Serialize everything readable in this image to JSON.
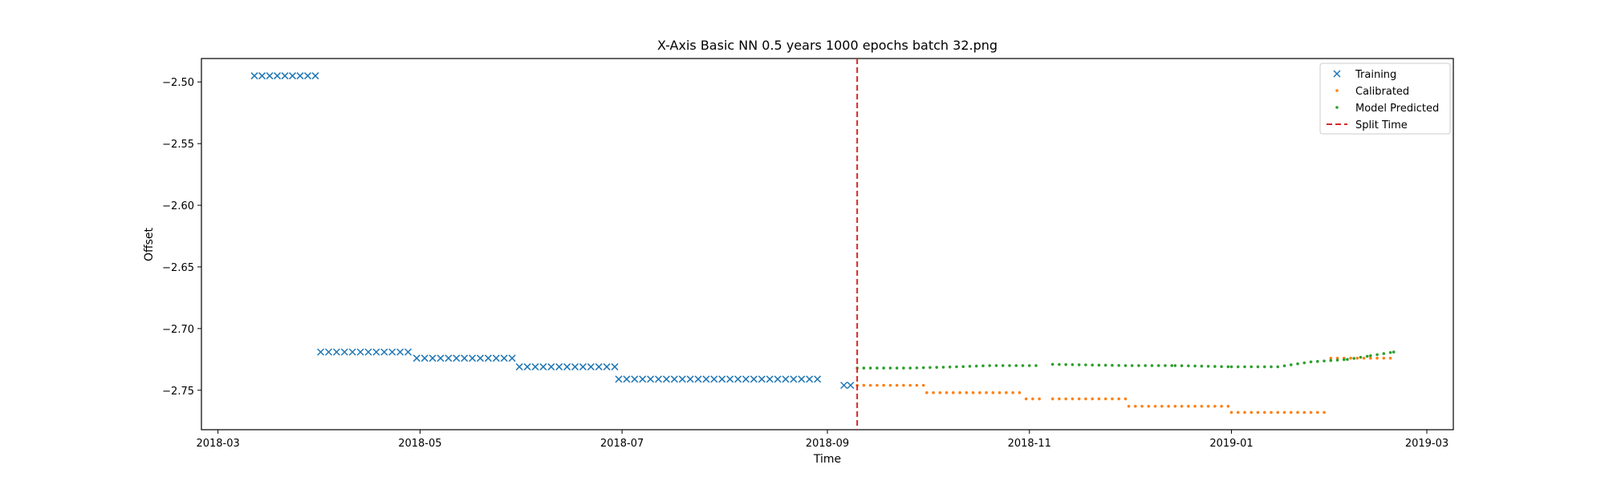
{
  "chart_data": {
    "type": "scatter",
    "title": "X-Axis Basic NN 0.5 years 1000 epochs batch 32.png",
    "xlabel": "Time",
    "ylabel": "Offset",
    "xlim": [
      "2018-02-24",
      "2019-03-09"
    ],
    "ylim": [
      -2.782,
      -2.481
    ],
    "x_ticks": [
      {
        "date": "2018-03-01",
        "label": "2018-03"
      },
      {
        "date": "2018-05-01",
        "label": "2018-05"
      },
      {
        "date": "2018-07-01",
        "label": "2018-07"
      },
      {
        "date": "2018-09-01",
        "label": "2018-09"
      },
      {
        "date": "2018-11-01",
        "label": "2018-11"
      },
      {
        "date": "2019-01-01",
        "label": "2019-01"
      },
      {
        "date": "2019-03-01",
        "label": "2019-03"
      }
    ],
    "y_ticks": [
      {
        "value": -2.5,
        "label": "−2.50"
      },
      {
        "value": -2.55,
        "label": "−2.55"
      },
      {
        "value": -2.6,
        "label": "−2.60"
      },
      {
        "value": -2.65,
        "label": "−2.65"
      },
      {
        "value": -2.7,
        "label": "−2.70"
      },
      {
        "value": -2.75,
        "label": "−2.75"
      }
    ],
    "grid": false,
    "legend_position": "top-right",
    "series": [
      {
        "name": "Training",
        "marker": "x",
        "color": "#1f77b4",
        "segments": [
          {
            "start": "2018-03-12",
            "end": "2018-03-31",
            "step_days": 2.3,
            "y": -2.495
          },
          {
            "start": "2018-04-01",
            "end": "2018-04-29",
            "step_days": 2.4,
            "y": -2.719
          },
          {
            "start": "2018-04-30",
            "end": "2018-05-30",
            "step_days": 2.4,
            "y": -2.724
          },
          {
            "start": "2018-05-31",
            "end": "2018-06-29",
            "step_days": 2.4,
            "y": -2.731
          },
          {
            "start": "2018-06-30",
            "end": "2018-08-30",
            "step_days": 2.4,
            "y": -2.741
          },
          {
            "start": "2018-09-06",
            "end": "2018-09-08",
            "step_days": 2.0,
            "y": -2.746
          }
        ]
      },
      {
        "name": "Calibrated",
        "marker": "dot",
        "color": "#ff7f0e",
        "segments": [
          {
            "start": "2018-09-10",
            "end": "2018-09-30",
            "step_days": 2.0,
            "y": -2.746
          },
          {
            "start": "2018-10-01",
            "end": "2018-10-30",
            "step_days": 2.0,
            "y": -2.752
          },
          {
            "start": "2018-10-31",
            "end": "2018-11-05",
            "step_days": 2.0,
            "y": -2.757
          },
          {
            "start": "2018-11-08",
            "end": "2018-11-30",
            "step_days": 2.0,
            "y": -2.757
          },
          {
            "start": "2018-12-01",
            "end": "2018-12-31",
            "step_days": 2.0,
            "y": -2.763
          },
          {
            "start": "2019-01-01",
            "end": "2019-01-30",
            "step_days": 2.0,
            "y": -2.768
          },
          {
            "start": "2019-01-31",
            "end": "2019-02-19",
            "step_days": 2.0,
            "y": -2.724
          }
        ]
      },
      {
        "name": "Model Predicted",
        "marker": "dot",
        "color": "#2ca02c",
        "points": [
          [
            "2018-09-10",
            -2.732
          ],
          [
            "2018-09-26",
            -2.732
          ],
          [
            "2018-10-10",
            -2.731
          ],
          [
            "2018-10-20",
            -2.73
          ],
          [
            "2018-11-05",
            -2.73
          ],
          [
            "2018-11-06",
            null
          ],
          [
            "2018-11-08",
            -2.729
          ],
          [
            "2018-11-30",
            -2.73
          ],
          [
            "2018-12-15",
            -2.73
          ],
          [
            "2019-01-01",
            -2.731
          ],
          [
            "2019-01-15",
            -2.731
          ],
          [
            "2019-01-25",
            -2.727
          ],
          [
            "2019-02-05",
            -2.725
          ],
          [
            "2019-02-12",
            -2.722
          ],
          [
            "2019-02-19",
            -2.719
          ]
        ],
        "step_days": 2.0
      },
      {
        "name": "Split Time",
        "type": "vline",
        "style": "dashed",
        "color": "#d62728",
        "x": "2018-09-10"
      }
    ]
  }
}
